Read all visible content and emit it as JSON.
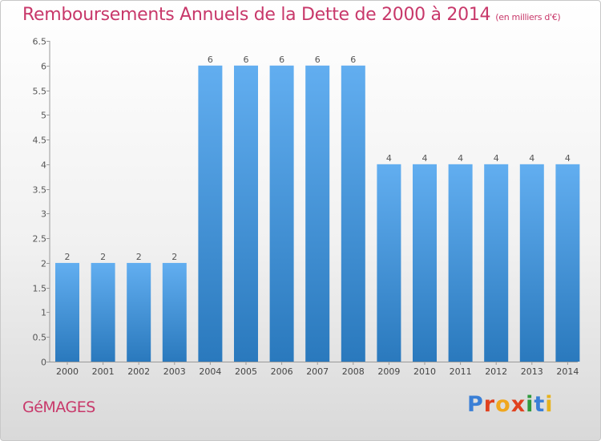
{
  "header": {
    "title": "Remboursements Annuels de la Dette de 2000 à 2014",
    "subtitle": "(en milliers d'€)"
  },
  "footer": {
    "commune": "GéMAGES",
    "logo": "Proxiti",
    "logo_colors": [
      "#3a7fd6",
      "#e0411f",
      "#f0a71e",
      "#e0411f",
      "#2f9a3c",
      "#3a7fd6",
      "#e7b21c"
    ]
  },
  "colors": {
    "bar_light": "#62aef0",
    "bar_dark": "#2a79bd",
    "accent": "#c8386a"
  },
  "chart_data": {
    "type": "bar",
    "title": "Remboursements Annuels de la Dette de 2000 à 2014",
    "subtitle": "(en milliers d'€)",
    "categories": [
      "2000",
      "2001",
      "2002",
      "2003",
      "2004",
      "2005",
      "2006",
      "2007",
      "2008",
      "2009",
      "2010",
      "2011",
      "2012",
      "2013",
      "2014"
    ],
    "values": [
      2,
      2,
      2,
      2,
      6,
      6,
      6,
      6,
      6,
      4,
      4,
      4,
      4,
      4,
      4
    ],
    "data_labels": [
      "2",
      "2",
      "2",
      "2",
      "6",
      "6",
      "6",
      "6",
      "6",
      "4",
      "4",
      "4",
      "4",
      "4",
      "4"
    ],
    "yticks": [
      "0",
      "0.5",
      "1",
      "1.5",
      "2",
      "2.5",
      "3",
      "3.5",
      "4",
      "4.5",
      "5",
      "5.5",
      "6",
      "6.5"
    ],
    "ylim": [
      0,
      6.5
    ],
    "grid": false,
    "xlabel": "",
    "ylabel": ""
  }
}
